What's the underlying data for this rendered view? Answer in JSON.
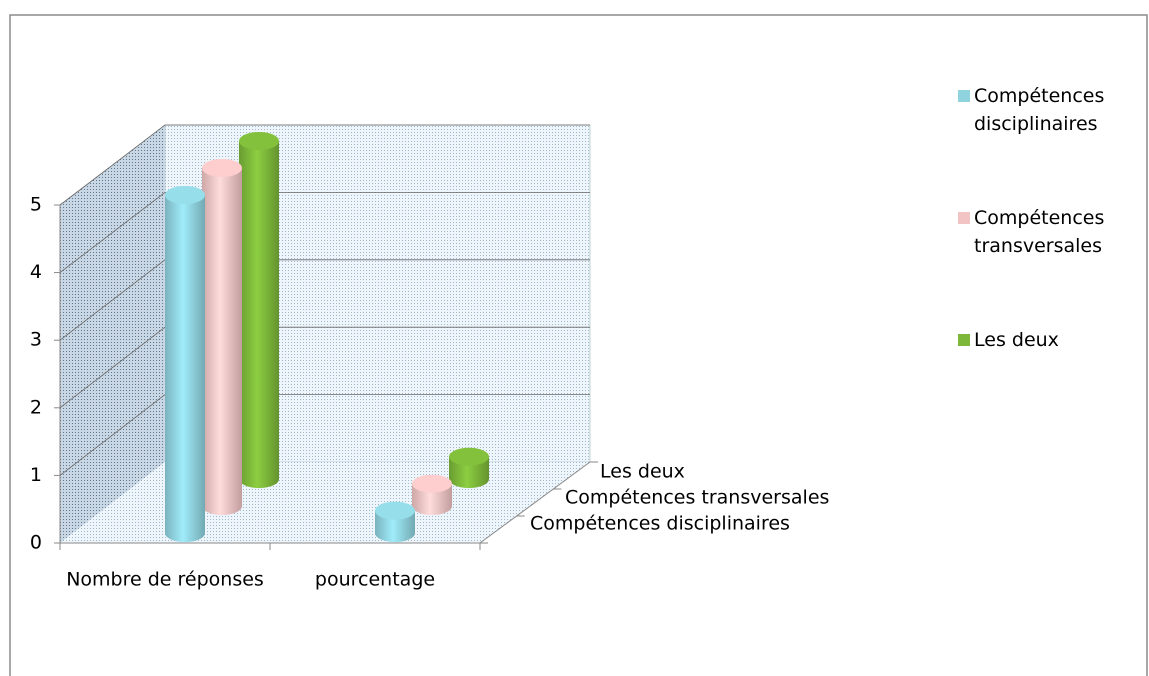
{
  "chart_data": {
    "type": "bar3d",
    "categories": [
      "Nombre de réponses",
      "pourcentage"
    ],
    "series": [
      {
        "name": "Compétences disciplinaires",
        "color": "#8fd3df",
        "values": [
          5,
          0.33
        ]
      },
      {
        "name": "Compétences transversales",
        "color": "#f2c4c4",
        "values": [
          5,
          0.33
        ]
      },
      {
        "name": "Les deux",
        "color": "#7db83a",
        "values": [
          5,
          0.33
        ]
      }
    ],
    "ylim": [
      0,
      5
    ],
    "yticks": [
      0,
      1,
      2,
      3,
      4,
      5
    ],
    "grid": true,
    "legend": "right"
  }
}
